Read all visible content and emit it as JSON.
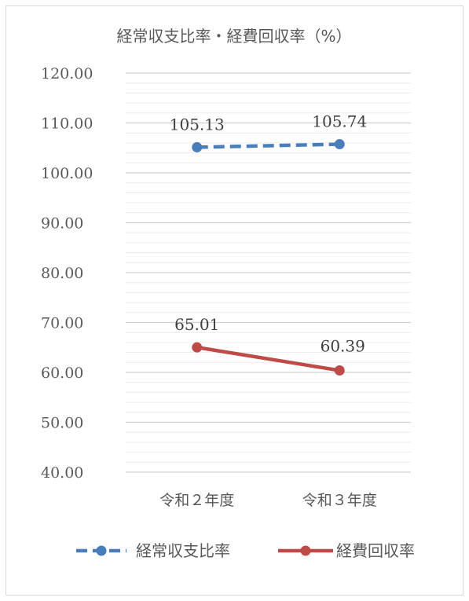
{
  "chart_data": {
    "type": "line",
    "title": "経常収支比率・経費回収率（%）",
    "categories": [
      "令和２年度",
      "令和３年度"
    ],
    "series": [
      {
        "name": "経常収支比率",
        "values": [
          105.13,
          105.74
        ],
        "color": "#4a7ebb",
        "style": "dashed",
        "labels": [
          "105.13",
          "105.74"
        ]
      },
      {
        "name": "経費回収率",
        "values": [
          65.01,
          60.39
        ],
        "color": "#be4b48",
        "style": "solid",
        "labels": [
          "65.01",
          "60.39"
        ]
      }
    ],
    "ylim": [
      40,
      120
    ],
    "yticks": [
      "40.00",
      "50.00",
      "60.00",
      "70.00",
      "80.00",
      "90.00",
      "100.00",
      "110.00",
      "120.00"
    ],
    "ytick_values": [
      40,
      50,
      60,
      70,
      80,
      90,
      100,
      110,
      120
    ],
    "minor_step": 2,
    "grid": true,
    "legend_position": "bottom"
  }
}
